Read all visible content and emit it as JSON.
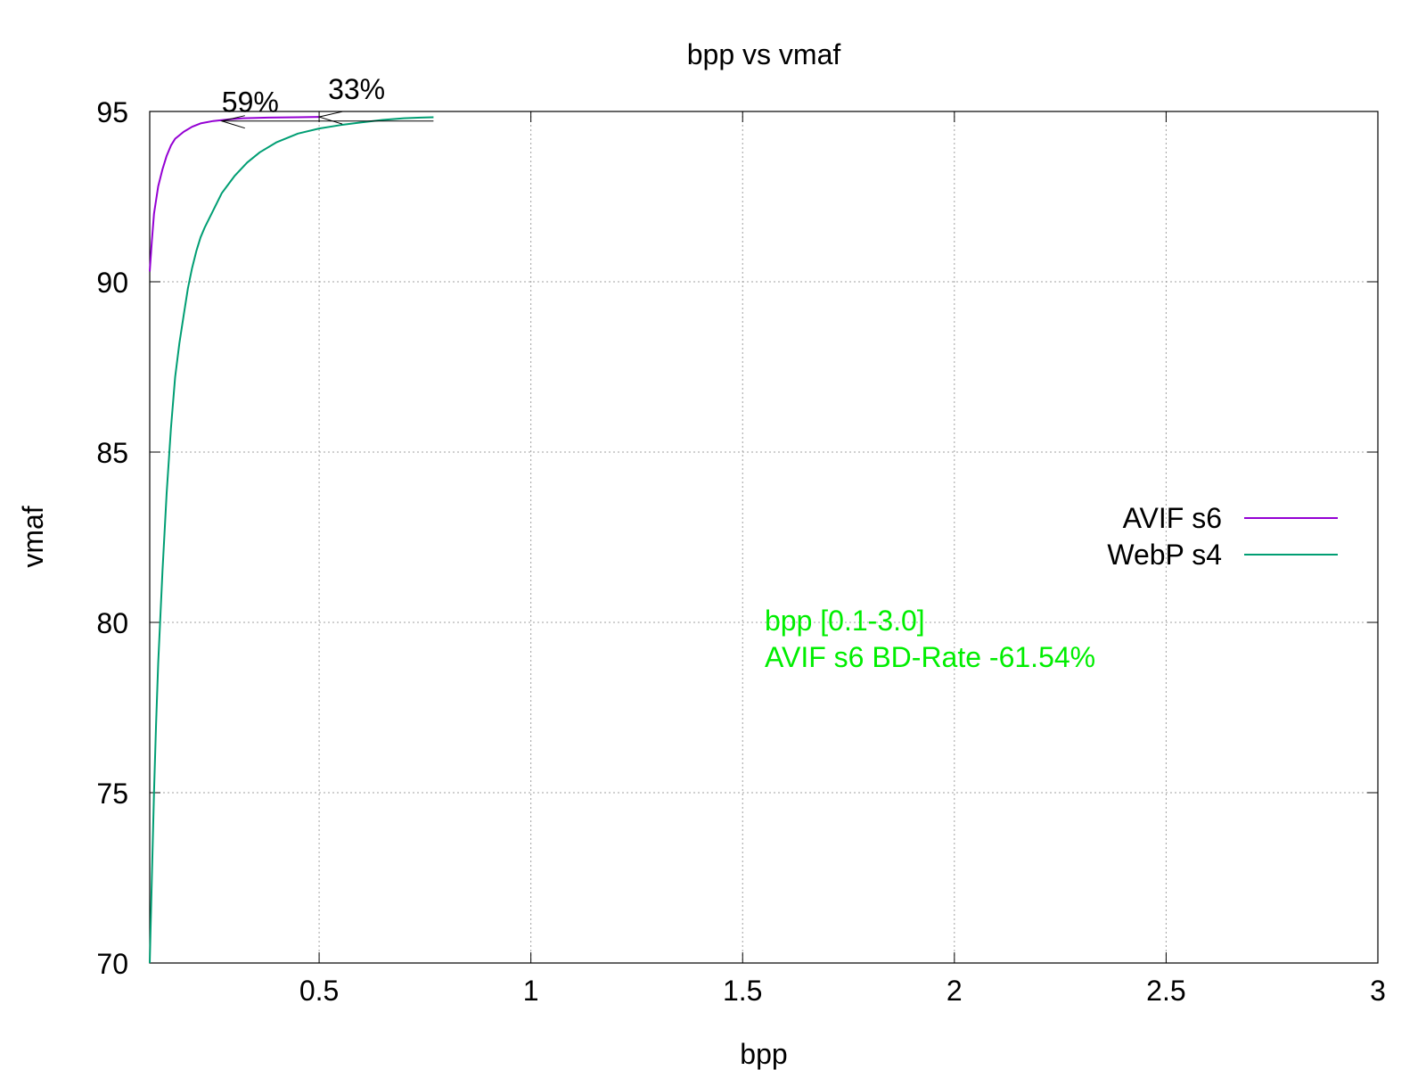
{
  "chart_data": {
    "type": "line",
    "title": "bpp vs vmaf",
    "xlabel": "bpp",
    "ylabel": "vmaf",
    "xlim": [
      0.1,
      3.0
    ],
    "ylim": [
      70,
      95
    ],
    "xticks": [
      0.5,
      1,
      1.5,
      2,
      2.5,
      3
    ],
    "xtick_labels": [
      "0.5",
      "1",
      "1.5",
      "2",
      "2.5",
      "3"
    ],
    "yticks": [
      70,
      75,
      80,
      85,
      90,
      95
    ],
    "ytick_labels": [
      "70",
      "75",
      "80",
      "85",
      "90",
      "95"
    ],
    "grid": true,
    "legend_position": "right",
    "series": [
      {
        "name": "AVIF s6",
        "color": "#9400d3",
        "x": [
          0.1,
          0.105,
          0.11,
          0.12,
          0.13,
          0.14,
          0.15,
          0.16,
          0.18,
          0.2,
          0.22,
          0.25,
          0.28,
          0.32,
          0.38,
          0.45,
          0.5
        ],
        "y": [
          90.3,
          91.2,
          92.0,
          92.8,
          93.3,
          93.7,
          94.0,
          94.2,
          94.4,
          94.55,
          94.65,
          94.72,
          94.76,
          94.8,
          94.82,
          94.83,
          94.84
        ]
      },
      {
        "name": "WebP s4",
        "color": "#009e73",
        "x": [
          0.1,
          0.105,
          0.11,
          0.115,
          0.12,
          0.13,
          0.14,
          0.15,
          0.16,
          0.17,
          0.18,
          0.19,
          0.2,
          0.21,
          0.22,
          0.23,
          0.25,
          0.27,
          0.3,
          0.33,
          0.36,
          0.4,
          0.45,
          0.5,
          0.55,
          0.6,
          0.65,
          0.7,
          0.74,
          0.77
        ],
        "y": [
          70.0,
          72.5,
          75.0,
          77.0,
          78.8,
          81.5,
          83.8,
          85.7,
          87.2,
          88.2,
          89.0,
          89.8,
          90.4,
          90.9,
          91.3,
          91.6,
          92.1,
          92.6,
          93.1,
          93.5,
          93.8,
          94.1,
          94.35,
          94.5,
          94.6,
          94.68,
          94.75,
          94.8,
          94.82,
          94.83
        ]
      }
    ],
    "annotations": [
      {
        "text": "59%",
        "x": 0.27,
        "y": 94.72
      },
      {
        "text": "33%",
        "x": 0.5,
        "y": 94.84
      }
    ],
    "text_box": {
      "lines": [
        "bpp [0.1-3.0]",
        "AVIF s6 BD-Rate -61.54%"
      ],
      "color": "#00ee00"
    }
  }
}
